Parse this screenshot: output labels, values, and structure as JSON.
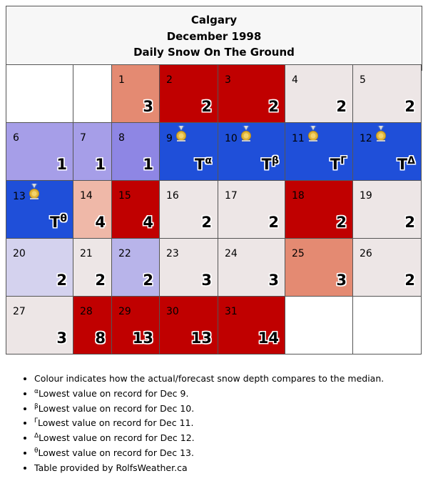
{
  "header": {
    "city": "Calgary",
    "month": "December 1998",
    "subtitle": "Daily Snow On The Ground"
  },
  "colors": {
    "blank": "#ffffff",
    "neutral": "#ede6e6",
    "salmon_light": "#efb8a8",
    "salmon": "#e48a72",
    "red": "#c00000",
    "lavender_pale": "#d4d2ee",
    "lavender": "#b8b4ea",
    "blue_light": "#a69ee8",
    "blue_mid": "#8e86e4",
    "blue_record": "#1f4fd9"
  },
  "weeks": [
    [
      {
        "day": "",
        "value": "",
        "color": "blank"
      },
      {
        "day": "",
        "value": "",
        "color": "blank"
      },
      {
        "day": "1",
        "value": "3",
        "color": "salmon"
      },
      {
        "day": "2",
        "value": "2",
        "color": "red"
      },
      {
        "day": "3",
        "value": "2",
        "color": "red"
      },
      {
        "day": "4",
        "value": "2",
        "color": "neutral"
      },
      {
        "day": "5",
        "value": "2",
        "color": "neutral"
      }
    ],
    [
      {
        "day": "6",
        "value": "1",
        "color": "blue_light"
      },
      {
        "day": "7",
        "value": "1",
        "color": "blue_light"
      },
      {
        "day": "8",
        "value": "1",
        "color": "blue_mid"
      },
      {
        "day": "9",
        "value": "T",
        "sup": "α",
        "medal": true,
        "color": "blue_record"
      },
      {
        "day": "10",
        "value": "T",
        "sup": "β",
        "medal": true,
        "color": "blue_record"
      },
      {
        "day": "11",
        "value": "T",
        "sup": "Γ",
        "medal": true,
        "color": "blue_record"
      },
      {
        "day": "12",
        "value": "T",
        "sup": "Δ",
        "medal": true,
        "color": "blue_record"
      }
    ],
    [
      {
        "day": "13",
        "value": "T",
        "sup": "θ",
        "medal": true,
        "color": "blue_record"
      },
      {
        "day": "14",
        "value": "4",
        "color": "salmon_light"
      },
      {
        "day": "15",
        "value": "4",
        "color": "red"
      },
      {
        "day": "16",
        "value": "2",
        "color": "neutral"
      },
      {
        "day": "17",
        "value": "2",
        "color": "neutral"
      },
      {
        "day": "18",
        "value": "2",
        "color": "red"
      },
      {
        "day": "19",
        "value": "2",
        "color": "neutral"
      }
    ],
    [
      {
        "day": "20",
        "value": "2",
        "color": "lavender_pale"
      },
      {
        "day": "21",
        "value": "2",
        "color": "neutral"
      },
      {
        "day": "22",
        "value": "2",
        "color": "lavender"
      },
      {
        "day": "23",
        "value": "3",
        "color": "neutral"
      },
      {
        "day": "24",
        "value": "3",
        "color": "neutral"
      },
      {
        "day": "25",
        "value": "3",
        "color": "salmon"
      },
      {
        "day": "26",
        "value": "2",
        "color": "neutral"
      }
    ],
    [
      {
        "day": "27",
        "value": "3",
        "color": "neutral"
      },
      {
        "day": "28",
        "value": "8",
        "color": "red"
      },
      {
        "day": "29",
        "value": "13",
        "color": "red"
      },
      {
        "day": "30",
        "value": "13",
        "color": "red"
      },
      {
        "day": "31",
        "value": "14",
        "color": "red"
      },
      {
        "day": "",
        "value": "",
        "color": "blank"
      },
      {
        "day": "",
        "value": "",
        "color": "blank"
      }
    ]
  ],
  "notes": [
    {
      "sup": "",
      "text": "Colour indicates how the actual/forecast snow depth compares to the median."
    },
    {
      "sup": "α",
      "text": "Lowest value on record for Dec 9."
    },
    {
      "sup": "β",
      "text": "Lowest value on record for Dec 10."
    },
    {
      "sup": "Γ",
      "text": "Lowest value on record for Dec 11."
    },
    {
      "sup": "Δ",
      "text": "Lowest value on record for Dec 12."
    },
    {
      "sup": "θ",
      "text": "Lowest value on record for Dec 13."
    },
    {
      "sup": "",
      "text": "Table provided by RolfsWeather.ca"
    }
  ]
}
